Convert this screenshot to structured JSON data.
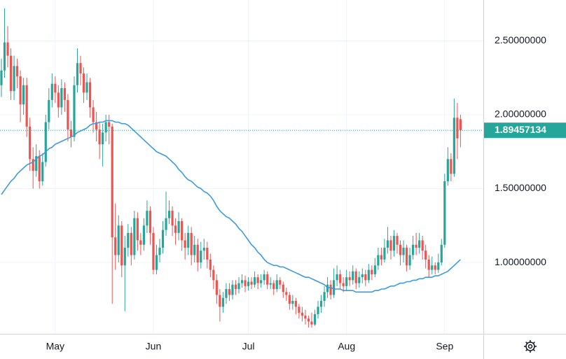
{
  "chart_data": {
    "type": "candlestick",
    "categories": [
      null,
      null,
      null,
      null,
      null,
      null,
      null,
      null,
      null,
      null,
      null,
      null,
      null,
      null,
      null,
      null,
      null,
      "May",
      null,
      null,
      null,
      null,
      null,
      null,
      null,
      null,
      null,
      null,
      null,
      null,
      null,
      null,
      null,
      null,
      null,
      null,
      null,
      null,
      null,
      null,
      null,
      null,
      null,
      null,
      null,
      null,
      null,
      null,
      "Jun",
      null,
      null,
      null,
      null,
      null,
      null,
      null,
      null,
      null,
      null,
      null,
      null,
      null,
      null,
      null,
      null,
      null,
      null,
      null,
      null,
      null,
      null,
      null,
      null,
      null,
      null,
      null,
      null,
      null,
      "Jul",
      null,
      null,
      null,
      null,
      null,
      null,
      null,
      null,
      null,
      null,
      null,
      null,
      null,
      null,
      null,
      null,
      null,
      null,
      null,
      null,
      null,
      null,
      null,
      null,
      null,
      null,
      null,
      null,
      null,
      null,
      "Aug",
      null,
      null,
      null,
      null,
      null,
      null,
      null,
      null,
      null,
      null,
      null,
      null,
      null,
      null,
      null,
      null,
      null,
      null,
      null,
      null,
      null,
      null,
      null,
      null,
      null,
      null,
      null,
      null,
      null,
      null,
      "Sep",
      null,
      null,
      null,
      null,
      null
    ],
    "open": [
      2.2,
      2.3,
      2.49,
      2.4,
      2.16,
      2.33,
      2.26,
      2.07,
      2.2,
      1.92,
      1.7,
      1.62,
      1.72,
      1.55,
      1.68,
      1.95,
      2.1,
      2.21,
      2.15,
      2.05,
      2.18,
      2.1,
      1.9,
      1.85,
      2.2,
      2.35,
      2.28,
      2.15,
      2.22,
      2.05,
      1.95,
      1.9,
      1.8,
      1.88,
      1.95,
      1.92,
      1.17,
      1.05,
      1.25,
      0.98,
      1.1,
      1.2,
      1.05,
      1.3,
      1.15,
      1.12,
      1.25,
      1.35,
      1.2,
      0.95,
      1.05,
      1.1,
      1.22,
      1.3,
      1.35,
      1.25,
      1.2,
      1.28,
      1.15,
      1.1,
      1.2,
      1.05,
      1.12,
      1.0,
      1.08,
      1.1,
      1.02,
      0.95,
      0.88,
      0.78,
      0.7,
      0.76,
      0.82,
      0.78,
      0.85,
      0.82,
      0.86,
      0.88,
      0.84,
      0.87,
      0.85,
      0.9,
      0.86,
      0.88,
      0.92,
      0.85,
      0.86,
      0.82,
      0.88,
      0.85,
      0.8,
      0.78,
      0.72,
      0.74,
      0.7,
      0.66,
      0.64,
      0.62,
      0.6,
      0.58,
      0.65,
      0.7,
      0.74,
      0.8,
      0.85,
      0.78,
      0.88,
      0.92,
      0.86,
      0.84,
      0.9,
      0.88,
      0.94,
      0.86,
      0.9,
      0.92,
      0.88,
      0.95,
      0.92,
      0.98,
      1.05,
      1.02,
      1.1,
      1.15,
      1.08,
      1.18,
      1.12,
      1.05,
      1.1,
      0.98,
      1.05,
      1.12,
      1.1,
      1.15,
      1.08,
      1.02,
      0.95,
      0.98,
      0.95,
      1.0,
      1.12,
      1.55,
      1.7,
      1.6,
      1.98,
      1.97
    ],
    "high": [
      2.38,
      2.72,
      2.6,
      2.45,
      2.4,
      2.38,
      2.3,
      2.25,
      2.25,
      1.98,
      1.78,
      1.8,
      1.76,
      1.74,
      2.0,
      2.18,
      2.28,
      2.26,
      2.2,
      2.24,
      2.22,
      2.14,
      1.96,
      2.26,
      2.45,
      2.4,
      2.32,
      2.28,
      2.25,
      2.1,
      2.02,
      1.95,
      1.94,
      2.0,
      2.0,
      1.94,
      1.4,
      1.32,
      1.28,
      1.18,
      1.26,
      1.24,
      1.35,
      1.34,
      1.2,
      1.3,
      1.42,
      1.38,
      1.24,
      1.12,
      1.16,
      1.28,
      1.48,
      1.42,
      1.38,
      1.3,
      1.34,
      1.3,
      1.2,
      1.25,
      1.24,
      1.18,
      1.16,
      1.14,
      1.16,
      1.14,
      1.06,
      0.98,
      0.92,
      0.82,
      0.8,
      0.86,
      0.86,
      0.88,
      0.88,
      0.9,
      0.92,
      0.91,
      0.9,
      0.9,
      0.94,
      0.92,
      0.92,
      0.95,
      0.94,
      0.9,
      0.88,
      0.92,
      0.9,
      0.87,
      0.83,
      0.8,
      0.78,
      0.76,
      0.72,
      0.7,
      0.68,
      0.64,
      0.66,
      0.68,
      0.74,
      0.78,
      0.84,
      0.9,
      0.88,
      0.96,
      0.98,
      0.95,
      0.9,
      0.95,
      0.94,
      0.98,
      0.96,
      0.94,
      0.96,
      0.95,
      0.99,
      0.98,
      1.03,
      1.1,
      1.1,
      1.16,
      1.24,
      1.18,
      1.22,
      1.2,
      1.15,
      1.15,
      1.12,
      1.1,
      1.18,
      1.2,
      1.2,
      1.18,
      1.12,
      1.05,
      1.04,
      1.0,
      1.06,
      1.16,
      1.6,
      1.78,
      1.74,
      2.11,
      2.08,
      2.0
    ],
    "low": [
      2.12,
      2.25,
      2.32,
      2.1,
      2.1,
      2.18,
      1.95,
      2.0,
      1.85,
      1.62,
      1.5,
      1.58,
      1.5,
      1.52,
      1.65,
      1.9,
      2.05,
      2.08,
      1.98,
      2.0,
      2.02,
      1.82,
      1.78,
      1.82,
      2.15,
      2.2,
      2.08,
      2.1,
      1.98,
      1.88,
      1.82,
      1.7,
      1.65,
      1.82,
      1.8,
      0.72,
      0.95,
      1.0,
      0.9,
      0.67,
      1.04,
      0.98,
      1.02,
      1.08,
      1.05,
      1.08,
      1.2,
      1.12,
      0.92,
      0.92,
      1.0,
      1.06,
      1.18,
      1.26,
      1.18,
      1.12,
      1.15,
      1.08,
      1.02,
      1.05,
      0.98,
      1.0,
      0.94,
      0.96,
      1.02,
      0.96,
      0.9,
      0.82,
      0.72,
      0.6,
      0.66,
      0.72,
      0.74,
      0.75,
      0.78,
      0.79,
      0.83,
      0.8,
      0.81,
      0.82,
      0.83,
      0.82,
      0.83,
      0.85,
      0.82,
      0.82,
      0.78,
      0.8,
      0.82,
      0.76,
      0.74,
      0.68,
      0.68,
      0.65,
      0.62,
      0.6,
      0.58,
      0.56,
      0.56,
      0.57,
      0.62,
      0.66,
      0.7,
      0.76,
      0.75,
      0.76,
      0.84,
      0.82,
      0.8,
      0.81,
      0.84,
      0.85,
      0.82,
      0.83,
      0.86,
      0.84,
      0.86,
      0.88,
      0.9,
      0.95,
      0.98,
      1.0,
      1.06,
      1.02,
      1.04,
      1.06,
      0.98,
      1.0,
      0.94,
      0.95,
      1.02,
      1.05,
      1.06,
      1.02,
      0.96,
      0.9,
      0.92,
      0.92,
      0.93,
      0.98,
      1.1,
      1.52,
      1.55,
      1.58,
      1.7,
      1.78
    ],
    "close": [
      2.3,
      2.49,
      2.4,
      2.16,
      2.33,
      2.26,
      2.07,
      2.2,
      1.92,
      1.7,
      1.62,
      1.72,
      1.55,
      1.68,
      1.95,
      2.1,
      2.21,
      2.15,
      2.05,
      2.18,
      2.1,
      1.9,
      1.85,
      2.2,
      2.35,
      2.28,
      2.15,
      2.22,
      2.05,
      1.95,
      1.9,
      1.8,
      1.88,
      1.95,
      1.92,
      1.17,
      1.05,
      1.25,
      0.98,
      1.1,
      1.2,
      1.05,
      1.3,
      1.15,
      1.12,
      1.25,
      1.35,
      1.2,
      0.95,
      1.05,
      1.1,
      1.22,
      1.3,
      1.35,
      1.25,
      1.2,
      1.28,
      1.15,
      1.1,
      1.2,
      1.05,
      1.12,
      1.0,
      1.08,
      1.1,
      1.02,
      0.95,
      0.88,
      0.78,
      0.7,
      0.76,
      0.82,
      0.78,
      0.85,
      0.82,
      0.86,
      0.88,
      0.84,
      0.87,
      0.85,
      0.9,
      0.86,
      0.88,
      0.92,
      0.85,
      0.86,
      0.82,
      0.88,
      0.85,
      0.8,
      0.78,
      0.72,
      0.74,
      0.7,
      0.66,
      0.64,
      0.62,
      0.6,
      0.58,
      0.65,
      0.7,
      0.74,
      0.8,
      0.85,
      0.78,
      0.88,
      0.92,
      0.86,
      0.84,
      0.9,
      0.88,
      0.94,
      0.86,
      0.9,
      0.92,
      0.88,
      0.95,
      0.92,
      0.98,
      1.05,
      1.02,
      1.1,
      1.15,
      1.08,
      1.18,
      1.12,
      1.05,
      1.1,
      0.98,
      1.05,
      1.12,
      1.1,
      1.15,
      1.08,
      1.02,
      0.95,
      0.98,
      0.95,
      1.0,
      1.12,
      1.55,
      1.7,
      1.6,
      1.98,
      1.84,
      1.89457134
    ],
    "up_color": "#26a69a",
    "down_color": "#ef5350",
    "ma": {
      "color": "#3d9ae0",
      "values": [
        1.46,
        1.49,
        1.52,
        1.55,
        1.57,
        1.6,
        1.62,
        1.64,
        1.66,
        1.67,
        1.68,
        1.7,
        1.72,
        1.73,
        1.75,
        1.77,
        1.78,
        1.8,
        1.81,
        1.82,
        1.83,
        1.84,
        1.85,
        1.86,
        1.88,
        1.89,
        1.9,
        1.91,
        1.93,
        1.94,
        1.94,
        1.95,
        1.95,
        1.96,
        1.96,
        1.96,
        1.95,
        1.95,
        1.94,
        1.94,
        1.93,
        1.91,
        1.89,
        1.87,
        1.85,
        1.83,
        1.81,
        1.79,
        1.77,
        1.75,
        1.74,
        1.73,
        1.72,
        1.7,
        1.68,
        1.66,
        1.63,
        1.61,
        1.58,
        1.56,
        1.55,
        1.53,
        1.51,
        1.5,
        1.48,
        1.47,
        1.45,
        1.42,
        1.38,
        1.35,
        1.33,
        1.31,
        1.3,
        1.28,
        1.26,
        1.23,
        1.21,
        1.18,
        1.15,
        1.12,
        1.1,
        1.07,
        1.05,
        1.02,
        1.0,
        0.99,
        0.98,
        0.98,
        0.97,
        0.97,
        0.96,
        0.95,
        0.94,
        0.93,
        0.92,
        0.91,
        0.9,
        0.9,
        0.89,
        0.88,
        0.87,
        0.86,
        0.85,
        0.83,
        0.83,
        0.82,
        0.82,
        0.82,
        0.81,
        0.81,
        0.81,
        0.81,
        0.8,
        0.8,
        0.8,
        0.8,
        0.8,
        0.8,
        0.81,
        0.81,
        0.82,
        0.82,
        0.83,
        0.84,
        0.84,
        0.85,
        0.86,
        0.86,
        0.87,
        0.87,
        0.88,
        0.88,
        0.89,
        0.89,
        0.9,
        0.9,
        0.9,
        0.91,
        0.91,
        0.92,
        0.93,
        0.94,
        0.96,
        0.98,
        1.0,
        1.02
      ]
    },
    "ylim": [
      0.517,
      2.777
    ],
    "yticks": [
      {
        "value": 1,
        "label": "1.00000000"
      },
      {
        "value": 1.5,
        "label": "1.50000000"
      },
      {
        "value": 2,
        "label": "2.00000000"
      },
      {
        "value": 2.5,
        "label": "2.50000000"
      }
    ],
    "grid": true,
    "last_price": 1.89457134,
    "last_price_color": "#26a69a"
  }
}
